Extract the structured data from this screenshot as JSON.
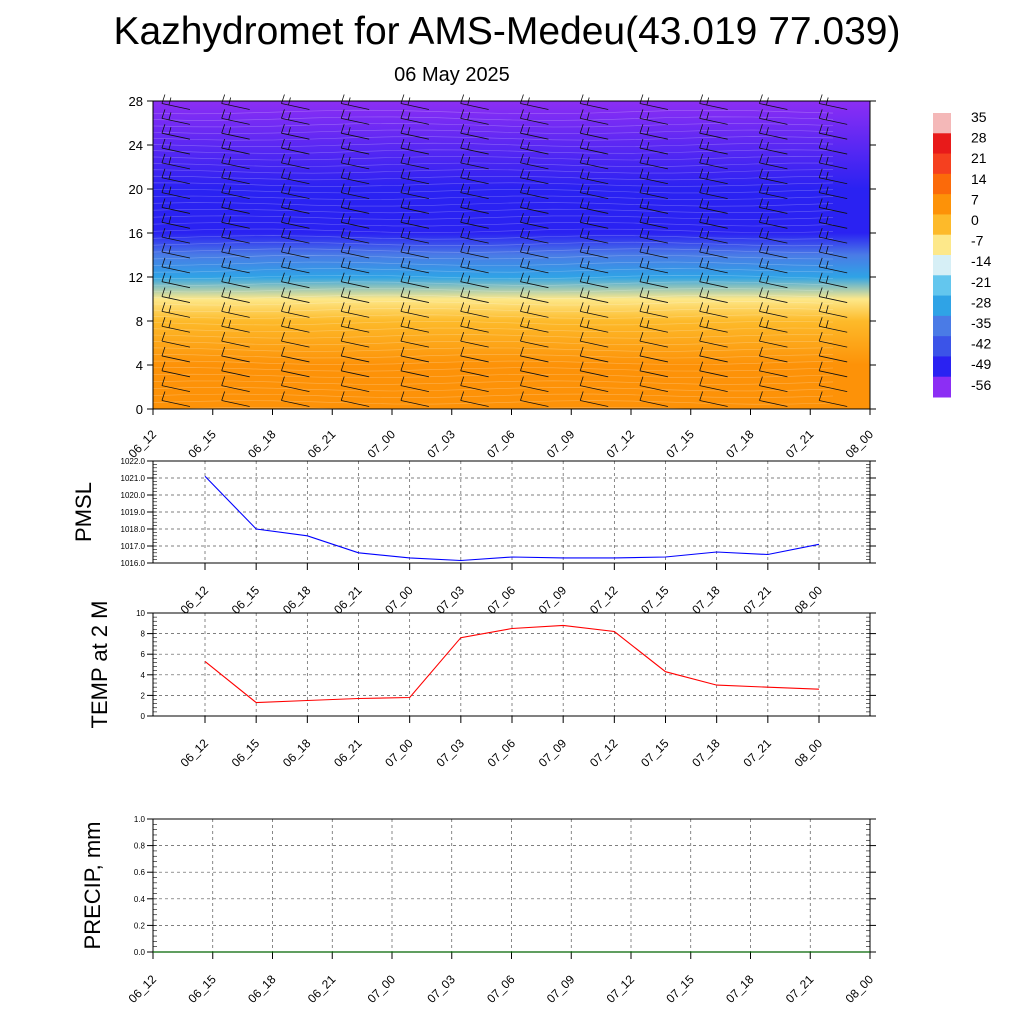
{
  "header": {
    "title": "Kazhydromet for AMS-Medeu(43.019 77.039)",
    "date": "06 May 2025"
  },
  "chart_data": [
    {
      "type": "heatmap",
      "xlabel": "",
      "ylabel": "",
      "x": [
        "06_12",
        "06_15",
        "06_18",
        "06_21",
        "07_00",
        "07_03",
        "07_06",
        "07_09",
        "07_12",
        "07_15",
        "07_18",
        "07_21",
        "08_00"
      ],
      "y_ticks": [
        0,
        4,
        8,
        12,
        16,
        20,
        24,
        28
      ],
      "ylim": [
        0,
        28
      ],
      "colorbar": {
        "labels": [
          "35",
          "28",
          "21",
          "14",
          "7",
          "0",
          "-7",
          "-14",
          "-21",
          "-28",
          "-35",
          "-42",
          "-49",
          "-56"
        ],
        "colors": [
          "#f4b8b8",
          "#e81a1a",
          "#f5401f",
          "#fb6a0a",
          "#fd9208",
          "#fdba2a",
          "#fde88a",
          "#d6eff6",
          "#63c6ee",
          "#2fa3e6",
          "#4a7be6",
          "#3b54e8",
          "#2a22f2",
          "#8c2ef4"
        ]
      },
      "temperature_profile": [
        {
          "height": 0,
          "value": 7
        },
        {
          "height": 4,
          "value": 4
        },
        {
          "height": 8,
          "value": -2
        },
        {
          "height": 10,
          "value": -8
        },
        {
          "height": 12,
          "value": -25
        },
        {
          "height": 14,
          "value": -38
        },
        {
          "height": 16,
          "value": -52
        },
        {
          "height": 20,
          "value": -52
        },
        {
          "height": 28,
          "value": -56
        }
      ],
      "wind_barbs": "present"
    },
    {
      "type": "line",
      "ylabel": "PMSL",
      "x": [
        "06_12",
        "06_15",
        "06_18",
        "06_21",
        "07_00",
        "07_03",
        "07_06",
        "07_09",
        "07_12",
        "07_15",
        "07_18",
        "07_21",
        "08_00"
      ],
      "y_ticks": [
        "1016.0",
        "1017.0",
        "1018.0",
        "1019.0",
        "1020.0",
        "1021.0",
        "1022.0"
      ],
      "ylim": [
        1016,
        1022
      ],
      "series": [
        {
          "values": [
            1021.1,
            1018.0,
            1017.6,
            1016.6,
            1016.3,
            1016.15,
            1016.35,
            1016.3,
            1016.3,
            1016.35,
            1016.65,
            1016.5,
            1017.1
          ],
          "color": "#0000ff"
        }
      ]
    },
    {
      "type": "line",
      "ylabel": "TEMP at 2 M",
      "x": [
        "06_12",
        "06_15",
        "06_18",
        "06_21",
        "07_00",
        "07_03",
        "07_06",
        "07_09",
        "07_12",
        "07_15",
        "07_18",
        "07_21",
        "08_00"
      ],
      "y_ticks": [
        "0",
        "2",
        "4",
        "6",
        "8",
        "10"
      ],
      "ylim": [
        0,
        10
      ],
      "series": [
        {
          "values": [
            5.3,
            1.3,
            1.5,
            1.7,
            1.8,
            7.6,
            8.5,
            8.8,
            8.2,
            4.3,
            3.0,
            2.8,
            2.6
          ],
          "color": "#ff0000"
        }
      ]
    },
    {
      "type": "line",
      "ylabel": "PRECIP, mm",
      "x": [
        "06_12",
        "06_15",
        "06_18",
        "06_21",
        "07_00",
        "07_03",
        "07_06",
        "07_09",
        "07_12",
        "07_15",
        "07_18",
        "07_21",
        "08_00"
      ],
      "y_ticks": [
        "0.0",
        "0.2",
        "0.4",
        "0.6",
        "0.8",
        "1.0"
      ],
      "ylim": [
        0,
        1
      ],
      "series": [
        {
          "values": [
            0,
            0,
            0,
            0,
            0,
            0,
            0,
            0,
            0,
            0,
            0,
            0,
            0
          ],
          "color": "#006400"
        }
      ]
    }
  ]
}
